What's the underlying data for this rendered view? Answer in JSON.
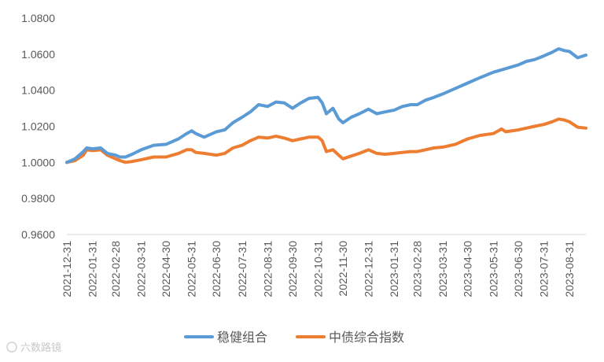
{
  "chart_data": {
    "type": "line",
    "title": "",
    "xlabel": "",
    "ylabel": "",
    "ylim": [
      0.96,
      1.08
    ],
    "y_tick_labels": [
      "0.9600",
      "0.9800",
      "1.0000",
      "1.0200",
      "1.0400",
      "1.0600",
      "1.0800"
    ],
    "x_tick_labels": [
      "2021-12-31",
      "2022-01-31",
      "2022-02-28",
      "2022-03-31",
      "2022-04-30",
      "2022-05-31",
      "2022-06-30",
      "2022-07-31",
      "2022-08-31",
      "2022-09-30",
      "2022-10-31",
      "2022-11-30",
      "2022-12-31",
      "2023-01-31",
      "2023-02-28",
      "2023-03-31",
      "2023-04-30",
      "2023-05-31",
      "2023-06-30",
      "2023-07-31",
      "2023-08-31"
    ],
    "x_end": "2023-09-20",
    "grid": false,
    "legend_position": "bottom",
    "series": [
      {
        "name": "稳健组合",
        "color": "#5B9BD5",
        "points": [
          [
            "2021-12-31",
            1.0
          ],
          [
            "2022-01-10",
            1.002
          ],
          [
            "2022-01-20",
            1.006
          ],
          [
            "2022-01-24",
            1.008
          ],
          [
            "2022-01-31",
            1.0075
          ],
          [
            "2022-02-10",
            1.008
          ],
          [
            "2022-02-18",
            1.005
          ],
          [
            "2022-02-28",
            1.004
          ],
          [
            "2022-03-05",
            1.003
          ],
          [
            "2022-03-12",
            1.003
          ],
          [
            "2022-03-20",
            1.0045
          ],
          [
            "2022-03-31",
            1.007
          ],
          [
            "2022-04-15",
            1.0095
          ],
          [
            "2022-04-30",
            1.01
          ],
          [
            "2022-05-15",
            1.013
          ],
          [
            "2022-05-25",
            1.016
          ],
          [
            "2022-05-31",
            1.0175
          ],
          [
            "2022-06-05",
            1.016
          ],
          [
            "2022-06-15",
            1.014
          ],
          [
            "2022-06-30",
            1.017
          ],
          [
            "2022-07-10",
            1.018
          ],
          [
            "2022-07-20",
            1.022
          ],
          [
            "2022-07-31",
            1.025
          ],
          [
            "2022-08-10",
            1.028
          ],
          [
            "2022-08-20",
            1.032
          ],
          [
            "2022-08-31",
            1.031
          ],
          [
            "2022-09-10",
            1.0335
          ],
          [
            "2022-09-20",
            1.033
          ],
          [
            "2022-09-30",
            1.03
          ],
          [
            "2022-10-10",
            1.033
          ],
          [
            "2022-10-20",
            1.0355
          ],
          [
            "2022-10-31",
            1.036
          ],
          [
            "2022-11-05",
            1.033
          ],
          [
            "2022-11-10",
            1.027
          ],
          [
            "2022-11-18",
            1.03
          ],
          [
            "2022-11-25",
            1.024
          ],
          [
            "2022-11-30",
            1.022
          ],
          [
            "2022-12-10",
            1.025
          ],
          [
            "2022-12-20",
            1.027
          ],
          [
            "2022-12-31",
            1.0295
          ],
          [
            "2023-01-10",
            1.027
          ],
          [
            "2023-01-20",
            1.028
          ],
          [
            "2023-01-31",
            1.029
          ],
          [
            "2023-02-10",
            1.031
          ],
          [
            "2023-02-20",
            1.032
          ],
          [
            "2023-02-28",
            1.032
          ],
          [
            "2023-03-10",
            1.0345
          ],
          [
            "2023-03-20",
            1.036
          ],
          [
            "2023-03-31",
            1.038
          ],
          [
            "2023-04-15",
            1.041
          ],
          [
            "2023-04-30",
            1.044
          ],
          [
            "2023-05-15",
            1.047
          ],
          [
            "2023-05-31",
            1.05
          ],
          [
            "2023-06-15",
            1.052
          ],
          [
            "2023-06-30",
            1.054
          ],
          [
            "2023-07-10",
            1.056
          ],
          [
            "2023-07-20",
            1.057
          ],
          [
            "2023-07-31",
            1.059
          ],
          [
            "2023-08-10",
            1.061
          ],
          [
            "2023-08-18",
            1.063
          ],
          [
            "2023-08-25",
            1.062
          ],
          [
            "2023-08-31",
            1.0615
          ],
          [
            "2023-09-10",
            1.058
          ],
          [
            "2023-09-20",
            1.0595
          ]
        ]
      },
      {
        "name": "中债综合指数",
        "color": "#ED7D31",
        "points": [
          [
            "2021-12-31",
            1.0
          ],
          [
            "2022-01-10",
            1.001
          ],
          [
            "2022-01-20",
            1.004
          ],
          [
            "2022-01-24",
            1.007
          ],
          [
            "2022-01-31",
            1.0065
          ],
          [
            "2022-02-10",
            1.007
          ],
          [
            "2022-02-18",
            1.004
          ],
          [
            "2022-02-28",
            1.002
          ],
          [
            "2022-03-05",
            1.001
          ],
          [
            "2022-03-12",
            1.0
          ],
          [
            "2022-03-20",
            1.0005
          ],
          [
            "2022-03-31",
            1.0015
          ],
          [
            "2022-04-15",
            1.003
          ],
          [
            "2022-04-30",
            1.003
          ],
          [
            "2022-05-15",
            1.005
          ],
          [
            "2022-05-25",
            1.007
          ],
          [
            "2022-05-31",
            1.007
          ],
          [
            "2022-06-05",
            1.0055
          ],
          [
            "2022-06-15",
            1.005
          ],
          [
            "2022-06-30",
            1.004
          ],
          [
            "2022-07-10",
            1.005
          ],
          [
            "2022-07-20",
            1.008
          ],
          [
            "2022-07-31",
            1.0095
          ],
          [
            "2022-08-10",
            1.012
          ],
          [
            "2022-08-20",
            1.014
          ],
          [
            "2022-08-31",
            1.0135
          ],
          [
            "2022-09-10",
            1.0145
          ],
          [
            "2022-09-20",
            1.0135
          ],
          [
            "2022-09-30",
            1.012
          ],
          [
            "2022-10-10",
            1.013
          ],
          [
            "2022-10-20",
            1.014
          ],
          [
            "2022-10-31",
            1.014
          ],
          [
            "2022-11-05",
            1.012
          ],
          [
            "2022-11-10",
            1.006
          ],
          [
            "2022-11-18",
            1.007
          ],
          [
            "2022-11-25",
            1.004
          ],
          [
            "2022-11-30",
            1.002
          ],
          [
            "2022-12-10",
            1.0035
          ],
          [
            "2022-12-20",
            1.005
          ],
          [
            "2022-12-31",
            1.007
          ],
          [
            "2023-01-10",
            1.005
          ],
          [
            "2023-01-20",
            1.0045
          ],
          [
            "2023-01-31",
            1.005
          ],
          [
            "2023-02-10",
            1.0055
          ],
          [
            "2023-02-20",
            1.006
          ],
          [
            "2023-02-28",
            1.006
          ],
          [
            "2023-03-10",
            1.007
          ],
          [
            "2023-03-20",
            1.008
          ],
          [
            "2023-03-31",
            1.0085
          ],
          [
            "2023-04-15",
            1.01
          ],
          [
            "2023-04-30",
            1.013
          ],
          [
            "2023-05-15",
            1.015
          ],
          [
            "2023-05-31",
            1.016
          ],
          [
            "2023-06-10",
            1.0185
          ],
          [
            "2023-06-15",
            1.017
          ],
          [
            "2023-06-30",
            1.018
          ],
          [
            "2023-07-10",
            1.019
          ],
          [
            "2023-07-20",
            1.02
          ],
          [
            "2023-07-31",
            1.021
          ],
          [
            "2023-08-10",
            1.0225
          ],
          [
            "2023-08-18",
            1.024
          ],
          [
            "2023-08-25",
            1.0235
          ],
          [
            "2023-08-31",
            1.0225
          ],
          [
            "2023-09-10",
            1.0195
          ],
          [
            "2023-09-20",
            1.019
          ]
        ]
      }
    ]
  },
  "watermark": "六数路镜"
}
